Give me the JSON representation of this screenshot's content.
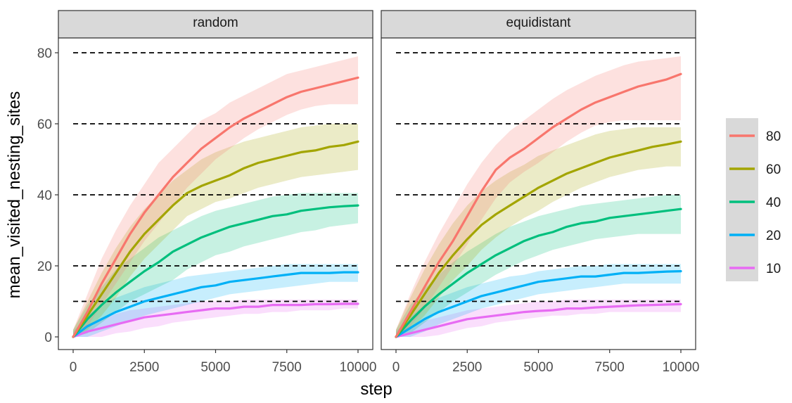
{
  "chart_data": {
    "type": "line",
    "xlabel": "step",
    "ylabel": "mean_visited_nesting_sites",
    "xlim": [
      0,
      10000
    ],
    "ylim": [
      0,
      80
    ],
    "x_ticks": [
      "0",
      "2500",
      "5000",
      "7500",
      "10000"
    ],
    "y_ticks": [
      "0",
      "20",
      "40",
      "60",
      "80"
    ],
    "reference_lines": [
      10,
      20,
      40,
      60,
      80
    ],
    "legend": {
      "placement": "right",
      "entries": [
        "80",
        "60",
        "40",
        "20",
        "10"
      ]
    },
    "colors": {
      "80": "#F8766D",
      "60": "#A3A500",
      "40": "#00BF7D",
      "20": "#00B0F6",
      "10": "#E76BF3"
    },
    "x": [
      0,
      500,
      1000,
      1500,
      2000,
      2500,
      3000,
      3500,
      4000,
      4500,
      5000,
      5500,
      6000,
      6500,
      7000,
      7500,
      8000,
      8500,
      9000,
      9500,
      10000
    ],
    "panels": [
      {
        "title": "random",
        "series": [
          {
            "name": "80",
            "mean": [
              0,
              7,
              15,
              22,
              29,
              35,
              40,
              45,
              49,
              53,
              56,
              59,
              61.5,
              63.5,
              65.5,
              67.5,
              69,
              70,
              71,
              72,
              73
            ],
            "lower": [
              0,
              3,
              9,
              15,
              21,
              27,
              32,
              37,
              42,
              46,
              50,
              53,
              56,
              58.5,
              60.5,
              62.5,
              64,
              65,
              65.5,
              65.5,
              65.5
            ],
            "upper": [
              2,
              12,
              22,
              30,
              37,
              43,
              49,
              53,
              57,
              61,
              63,
              66,
              68,
              70,
              72,
              74,
              75,
              76,
              77,
              78,
              79
            ]
          },
          {
            "name": "60",
            "mean": [
              0,
              6,
              12,
              18,
              24,
              29,
              33,
              37,
              40.5,
              42.5,
              44,
              45.5,
              47.5,
              49,
              50,
              51,
              52,
              52.5,
              53.5,
              54,
              55
            ],
            "lower": [
              0,
              2,
              6,
              11,
              17,
              22,
              26,
              30,
              34,
              36,
              38,
              39,
              40.5,
              42,
              43,
              44,
              45,
              45.5,
              46,
              46.5,
              47
            ],
            "upper": [
              2,
              10,
              18,
              25,
              31,
              36,
              40,
              44,
              47,
              50,
              52,
              53.5,
              55,
              56,
              57,
              58,
              59,
              59.5,
              60,
              60,
              60
            ]
          },
          {
            "name": "40",
            "mean": [
              0,
              5,
              9,
              12.5,
              15.5,
              18.5,
              21,
              24,
              26,
              28,
              29.5,
              31,
              32,
              33,
              34,
              34.5,
              35.5,
              36,
              36.5,
              36.8,
              37
            ],
            "lower": [
              0,
              1,
              4,
              7,
              10,
              12,
              14,
              16,
              19,
              21,
              23,
              24,
              25.5,
              26.5,
              27.5,
              28.5,
              29.5,
              30,
              31,
              31.5,
              32
            ],
            "upper": [
              2,
              9,
              14,
              19,
              22,
              25,
              28,
              30,
              32,
              34,
              35.5,
              36.5,
              37.5,
              38.5,
              39.5,
              40,
              40.5,
              40.5,
              40.5,
              40.5,
              40.5
            ]
          },
          {
            "name": "20",
            "mean": [
              0,
              3,
              5,
              7,
              8.5,
              10,
              11,
              12,
              13,
              14,
              14.5,
              15.5,
              16,
              16.5,
              17,
              17.5,
              18,
              18,
              18,
              18.2,
              18.2
            ],
            "lower": [
              0,
              0,
              1.5,
              3,
              4.5,
              6,
              7,
              8,
              9,
              10,
              11,
              12,
              12.5,
              13,
              13.5,
              14,
              14.5,
              15,
              15.5,
              15.5,
              15.5
            ],
            "upper": [
              1.5,
              6,
              9,
              11,
              12.5,
              14,
              15,
              16,
              17,
              17.5,
              18,
              18.5,
              19,
              19.5,
              20,
              20.5,
              20.5,
              20.5,
              20.5,
              20.5,
              20.5
            ]
          },
          {
            "name": "10",
            "mean": [
              0,
              1.5,
              2.5,
              3.5,
              4.5,
              5.5,
              6,
              6.5,
              7,
              7.5,
              8,
              8,
              8.5,
              8.5,
              9,
              9,
              9,
              9.2,
              9.2,
              9.3,
              9.3
            ],
            "lower": [
              0,
              0,
              0,
              1,
              1.5,
              2.5,
              3,
              4,
              4.5,
              5,
              5.5,
              6,
              6.5,
              6.5,
              7,
              7,
              7.5,
              7.5,
              7.5,
              8,
              8
            ],
            "upper": [
              1,
              3.5,
              5,
              6.5,
              7.5,
              8,
              8.5,
              9,
              9.5,
              10,
              10,
              10,
              10.5,
              10.5,
              10.5,
              10.5,
              10.5,
              10.5,
              10.5,
              10.5,
              10.5
            ]
          }
        ]
      },
      {
        "title": "equidistant",
        "series": [
          {
            "name": "80",
            "mean": [
              0,
              7,
              14,
              21,
              27,
              34,
              41,
              47,
              50.5,
              53,
              56,
              59,
              61.5,
              64,
              66,
              67.5,
              69,
              70.5,
              71.5,
              72.5,
              74
            ],
            "lower": [
              0,
              3,
              8,
              14,
              20,
              26,
              33,
              39,
              43.5,
              46.5,
              49,
              52,
              55,
              57.5,
              59.5,
              60.5,
              61,
              61,
              61,
              61,
              61
            ],
            "upper": [
              2,
              12,
              21,
              29,
              36,
              43,
              49,
              54,
              58,
              61,
              64,
              67,
              69.5,
              71.5,
              73.5,
              75,
              76.5,
              77.5,
              78,
              78.5,
              79
            ]
          },
          {
            "name": "60",
            "mean": [
              0,
              6,
              12,
              18,
              23,
              27.5,
              31.5,
              34.5,
              37,
              39.5,
              42,
              44,
              46,
              47.5,
              49,
              50.5,
              51.5,
              52.5,
              53.5,
              54.2,
              55
            ],
            "lower": [
              0,
              2,
              6,
              11,
              16,
              20,
              24.5,
              28,
              31,
              33.5,
              35.5,
              38,
              40,
              42,
              43.5,
              45,
              46,
              47,
              47.5,
              48,
              48
            ],
            "upper": [
              2,
              11,
              19,
              26,
              32,
              37,
              41,
              44,
              46.5,
              48.5,
              51,
              52.5,
              54,
              55.5,
              57,
              58,
              58.5,
              59,
              59,
              59,
              59
            ]
          },
          {
            "name": "40",
            "mean": [
              0,
              4.5,
              8.5,
              12,
              15,
              18,
              20.5,
              23,
              25,
              27,
              28.5,
              29.5,
              31,
              32,
              32.5,
              33.5,
              34,
              34.5,
              35,
              35.5,
              36
            ],
            "lower": [
              0,
              1,
              4,
              7,
              10,
              12.5,
              15,
              17.5,
              19.5,
              21.5,
              23,
              24.5,
              25.5,
              26.5,
              27.5,
              28,
              28.5,
              29,
              29,
              29,
              29
            ],
            "upper": [
              2,
              9,
              13.5,
              17.5,
              21,
              24,
              26.5,
              29,
              31,
              32.5,
              34,
              35,
              36,
              37,
              37.5,
              38,
              38.5,
              39,
              39.5,
              40,
              40
            ]
          },
          {
            "name": "20",
            "mean": [
              0,
              2.5,
              5,
              7,
              8.5,
              10,
              11.5,
              12.5,
              13.5,
              14.5,
              15.5,
              16,
              16.5,
              17,
              17,
              17.5,
              18,
              18,
              18.2,
              18.4,
              18.5
            ],
            "lower": [
              0,
              0,
              1.5,
              3.5,
              5,
              6.5,
              8,
              9,
              10,
              11,
              12,
              12.5,
              13,
              13.5,
              14,
              14.5,
              15,
              15,
              15,
              15,
              15
            ],
            "upper": [
              1.5,
              5.5,
              9,
              11,
              12.5,
              14,
              15,
              16,
              17,
              17.5,
              18.5,
              19,
              19.5,
              20,
              20,
              20.5,
              20.5,
              20.5,
              20.5,
              20.5,
              20.5
            ]
          },
          {
            "name": "10",
            "mean": [
              0,
              1,
              2,
              3,
              4,
              5,
              5.5,
              6,
              6.5,
              7,
              7.3,
              7.5,
              8,
              8,
              8.3,
              8.5,
              8.7,
              8.9,
              9,
              9.1,
              9.2
            ],
            "lower": [
              0,
              0,
              0,
              0.5,
              1.5,
              2.5,
              3,
              4,
              4.5,
              5,
              5.5,
              6,
              6,
              6.5,
              6.5,
              7,
              7,
              7,
              7,
              7,
              7
            ],
            "upper": [
              1,
              3,
              4.5,
              5.5,
              6.5,
              7.5,
              8,
              8.5,
              9,
              9.5,
              10,
              10,
              10.5,
              10.5,
              10.5,
              10.5,
              10.5,
              10.5,
              10.5,
              10.5,
              10.5
            ]
          }
        ]
      }
    ]
  }
}
